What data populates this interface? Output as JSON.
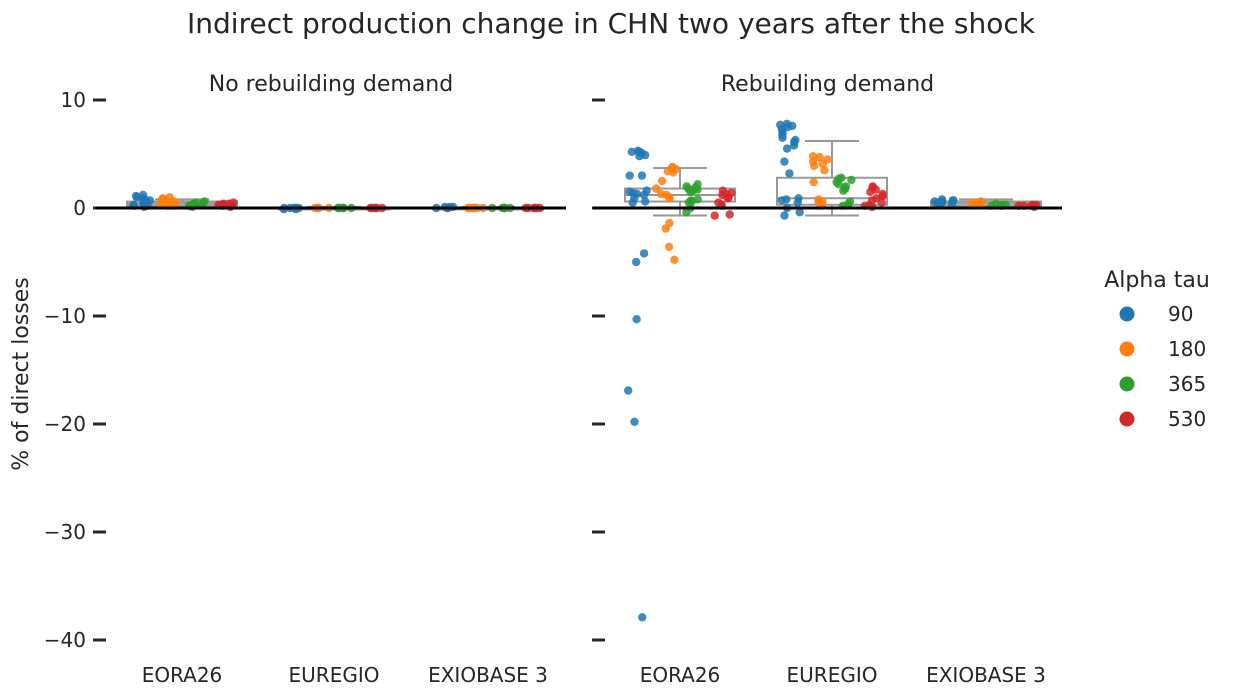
{
  "chart_data": {
    "type": "scatter",
    "title": "Indirect production change in CHN two years after the shock",
    "ylabel": "% of direct losses",
    "ylim": [
      -41,
      12
    ],
    "yticks": [
      10,
      0,
      -10,
      -20,
      -30,
      -40
    ],
    "ytick_labels": [
      "10",
      "0",
      "−10",
      "−20",
      "−30",
      "−40"
    ],
    "categories": [
      "EORA26",
      "EUREGIO",
      "EXIOBASE 3"
    ],
    "legend": {
      "title": "Alpha tau",
      "position": "right"
    },
    "series": [
      {
        "name": "90",
        "color": "#1f77b4"
      },
      {
        "name": "180",
        "color": "#ff7f0e"
      },
      {
        "name": "365",
        "color": "#2ca02c"
      },
      {
        "name": "530",
        "color": "#d62728"
      }
    ],
    "panels": [
      {
        "title": "No rebuilding demand",
        "groups": [
          {
            "category": "EORA26",
            "box": {
              "q1": 0.2,
              "median": 0.4,
              "q3": 0.6,
              "whisker_low": 0.0,
              "whisker_high": 0.8
            },
            "points": [
              [
                1.2,
                1.1,
                0.9,
                0.7,
                0.5,
                0.4,
                0.3,
                0.2,
                0.1,
                0.6,
                0.8,
                1.0,
                0.3,
                0.2
              ],
              [
                1.0,
                0.9,
                0.8,
                0.6,
                0.5,
                0.4,
                0.3,
                0.2,
                0.2,
                0.7,
                0.5,
                0.3
              ],
              [
                0.6,
                0.5,
                0.4,
                0.3,
                0.3,
                0.2,
                0.2,
                0.1,
                0.4,
                0.5
              ],
              [
                0.5,
                0.4,
                0.4,
                0.3,
                0.2,
                0.2,
                0.1,
                0.3,
                0.3
              ]
            ]
          },
          {
            "category": "EUREGIO",
            "box": {
              "q1": -0.05,
              "median": 0.0,
              "q3": 0.05,
              "whisker_low": -0.1,
              "whisker_high": 0.1
            },
            "points": [
              [
                0.0,
                -0.1,
                0.0,
                0.0,
                -0.1,
                0.0,
                0.0,
                0.0
              ],
              [
                0.0,
                0.0,
                0.0,
                0.0,
                0.0,
                0.0
              ],
              [
                0.0,
                0.0,
                0.0,
                0.0,
                0.0,
                0.0
              ],
              [
                0.0,
                0.0,
                0.0,
                0.0,
                0.0,
                0.0
              ]
            ]
          },
          {
            "category": "EXIOBASE 3",
            "box": {
              "q1": 0.0,
              "median": 0.0,
              "q3": 0.05,
              "whisker_low": 0.0,
              "whisker_high": 0.1
            },
            "points": [
              [
                0.1,
                0.0,
                0.1,
                0.0,
                0.0,
                0.1
              ],
              [
                0.0,
                0.0,
                0.0,
                0.0,
                0.0,
                0.0
              ],
              [
                0.0,
                0.0,
                0.0,
                0.0,
                0.0,
                0.0
              ],
              [
                0.0,
                0.0,
                0.0,
                0.0,
                0.0,
                0.0
              ]
            ]
          }
        ]
      },
      {
        "title": "Rebuilding demand",
        "groups": [
          {
            "category": "EORA26",
            "box": {
              "q1": 0.6,
              "median": 1.2,
              "q3": 1.8,
              "whisker_low": -0.7,
              "whisker_high": 3.7
            },
            "points": [
              [
                5.3,
                5.2,
                5.2,
                5.1,
                4.9,
                4.8,
                3.0,
                3.0,
                1.6,
                1.5,
                1.4,
                1.3,
                1.2,
                0.9,
                0.6,
                0.5,
                -4.2,
                -5.0,
                -10.3,
                -16.9,
                -19.8,
                -37.9
              ],
              [
                3.8,
                3.7,
                3.6,
                3.4,
                3.3,
                2.5,
                1.8,
                1.3,
                1.2,
                1.0,
                0.9,
                -1.4,
                -1.9,
                -3.6,
                -4.8
              ],
              [
                2.2,
                2.0,
                1.9,
                1.8,
                1.7,
                1.6,
                1.5,
                0.8,
                0.7,
                0.6,
                0.5,
                0.0,
                -0.4
              ],
              [
                1.6,
                1.4,
                1.3,
                1.2,
                1.0,
                0.9,
                0.5,
                0.3,
                0.2,
                -0.7,
                -0.6
              ]
            ]
          },
          {
            "category": "EUREGIO",
            "box": {
              "q1": 0.3,
              "median": 0.9,
              "q3": 2.8,
              "whisker_low": -0.7,
              "whisker_high": 6.2
            },
            "points": [
              [
                7.8,
                7.7,
                7.6,
                7.5,
                7.3,
                7.0,
                6.8,
                6.5,
                6.3,
                6.1,
                5.8,
                5.5,
                4.3,
                3.2,
                0.9,
                0.8,
                0.7,
                0.5,
                0.0,
                -0.4,
                -0.7
              ],
              [
                4.8,
                4.7,
                4.5,
                4.3,
                4.1,
                3.9,
                3.5,
                2.4,
                0.8,
                0.6,
                0.5,
                0.3,
                0.2
              ],
              [
                2.8,
                2.7,
                2.6,
                2.4,
                2.2,
                2.0,
                1.8,
                1.6,
                0.6,
                0.4,
                0.3,
                0.2
              ],
              [
                2.0,
                1.9,
                1.7,
                1.5,
                1.3,
                1.1,
                0.9,
                0.7,
                0.5,
                0.3,
                0.2,
                0.1
              ]
            ]
          },
          {
            "category": "EXIOBASE 3",
            "box": {
              "q1": 0.2,
              "median": 0.4,
              "q3": 0.6,
              "whisker_low": 0.1,
              "whisker_high": 0.8
            },
            "points": [
              [
                0.8,
                0.7,
                0.7,
                0.6,
                0.6,
                0.5,
                0.5,
                0.4,
                0.4
              ],
              [
                0.6,
                0.5,
                0.5,
                0.4,
                0.4,
                0.3,
                0.3
              ],
              [
                0.4,
                0.3,
                0.3,
                0.2,
                0.2,
                0.2
              ],
              [
                0.3,
                0.3,
                0.2,
                0.2,
                0.2,
                0.1
              ]
            ]
          }
        ]
      }
    ],
    "grid": false
  }
}
